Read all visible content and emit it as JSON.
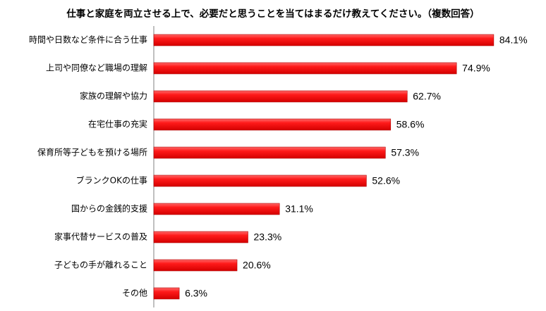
{
  "chart_data": {
    "type": "bar",
    "orientation": "horizontal",
    "title": "仕事と家庭を両立させる上で、必要だと思うことを当てはまるだけ教えてください。（複数回答）",
    "categories": [
      "時間や日数など条件に合う仕事",
      "上司や同僚など職場の理解",
      "家族の理解や協力",
      "在宅仕事の充実",
      "保育所等子どもを預ける場所",
      "ブランクOKの仕事",
      "国からの金銭的支援",
      "家事代替サービスの普及",
      "子どもの手が離れること",
      "その他"
    ],
    "values": [
      84.1,
      74.9,
      62.7,
      58.6,
      57.3,
      52.6,
      31.1,
      23.3,
      20.6,
      6.3
    ],
    "value_labels": [
      "84.1%",
      "74.9%",
      "62.7%",
      "58.6%",
      "57.3%",
      "52.6%",
      "31.1%",
      "23.3%",
      "20.6%",
      "6.3%"
    ],
    "unit": "%",
    "xlim": [
      0,
      100
    ],
    "grid": false,
    "legend": "none",
    "bar_color": "#ff0000"
  }
}
